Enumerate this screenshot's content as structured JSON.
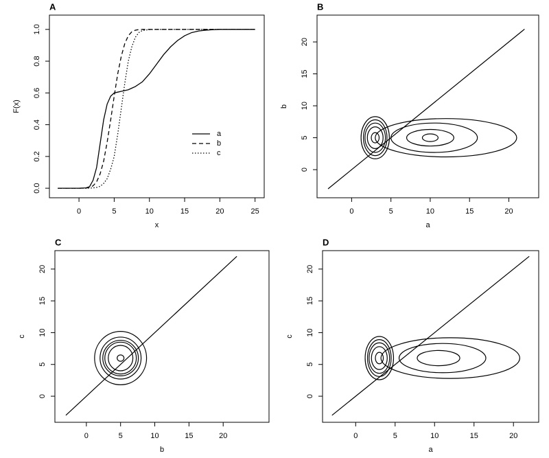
{
  "chart_data": [
    {
      "type": "line",
      "title": "A",
      "x_label": "x",
      "y_label": "F(x)",
      "x": [
        -3,
        -2,
        -1,
        0,
        1,
        1.5,
        2,
        2.5,
        3,
        3.5,
        4,
        4.5,
        5,
        5.5,
        6,
        6.5,
        7,
        7.5,
        8,
        8.5,
        9,
        10,
        11,
        12,
        13,
        14,
        15,
        16,
        17,
        18,
        19,
        20,
        21,
        22,
        23,
        24,
        25
      ],
      "series": [
        {
          "name": "a",
          "color": "#000000",
          "linestyle": "solid",
          "values": [
            0,
            0,
            0,
            0,
            0.002,
            0.01,
            0.05,
            0.13,
            0.28,
            0.43,
            0.53,
            0.58,
            0.6,
            0.605,
            0.61,
            0.615,
            0.62,
            0.63,
            0.64,
            0.655,
            0.67,
            0.72,
            0.78,
            0.84,
            0.89,
            0.93,
            0.96,
            0.98,
            0.99,
            0.995,
            0.998,
            1,
            1,
            1,
            1,
            1,
            1
          ]
        },
        {
          "name": "b",
          "color": "#000000",
          "linestyle": "dashed",
          "values": [
            0,
            0,
            0,
            0,
            0.001,
            0.005,
            0.015,
            0.04,
            0.09,
            0.17,
            0.29,
            0.43,
            0.58,
            0.72,
            0.83,
            0.91,
            0.96,
            0.985,
            0.995,
            0.999,
            1,
            1,
            1,
            1,
            1,
            1,
            1,
            1,
            1,
            1,
            1,
            1,
            1,
            1,
            1,
            1,
            1
          ]
        },
        {
          "name": "c",
          "color": "#000000",
          "linestyle": "dotted",
          "values": [
            0,
            0,
            0,
            0,
            0,
            0.001,
            0.002,
            0.005,
            0.012,
            0.03,
            0.06,
            0.12,
            0.2,
            0.34,
            0.5,
            0.66,
            0.8,
            0.89,
            0.95,
            0.98,
            0.993,
            0.999,
            1,
            1,
            1,
            1,
            1,
            1,
            1,
            1,
            1,
            1,
            1,
            1,
            1,
            1,
            1
          ]
        }
      ],
      "xlim": [
        -4.2,
        26.3
      ],
      "xticks": [
        0,
        5,
        10,
        15,
        20,
        25
      ],
      "ylim": [
        -0.06,
        1.09
      ],
      "yticks": [
        {
          "value": 0,
          "label": "0.0"
        },
        0.2,
        0.4,
        0.6,
        0.8,
        {
          "value": 1,
          "label": "1.0"
        }
      ],
      "legend": "center-right"
    },
    {
      "type": "contour",
      "title": "B",
      "x_label": "a",
      "y_label": "b",
      "reference": {
        "x": [
          -3,
          22
        ],
        "y": [
          -3,
          22
        ]
      },
      "contours": [
        {
          "cx": 3,
          "cy": 5,
          "rx": 0.5,
          "ry": 0.8
        },
        {
          "cx": 3,
          "cy": 5,
          "rx": 1,
          "ry": 1.7
        },
        {
          "cx": 3,
          "cy": 5,
          "rx": 1.3,
          "ry": 2.3
        },
        {
          "cx": 3,
          "cy": 5,
          "rx": 1.5,
          "ry": 2.8
        },
        {
          "cx": 3,
          "cy": 5,
          "rx": 1.8,
          "ry": 3.3
        },
        {
          "cx": 10,
          "cy": 5,
          "rx": 1,
          "ry": 0.6
        },
        {
          "cx": 10,
          "cy": 5,
          "rx": 3,
          "ry": 1.3
        },
        {
          "cx": 10.5,
          "cy": 5,
          "rx": 5.5,
          "ry": 2.3
        },
        {
          "cx": 12,
          "cy": 5,
          "rx": 9,
          "ry": 3
        }
      ],
      "xlim": [
        -4.4,
        23.8
      ],
      "xticks": [
        0,
        5,
        10,
        15,
        20
      ],
      "ylim": [
        -4.4,
        24.2
      ],
      "yticks": [
        0,
        5,
        10,
        15,
        20
      ]
    },
    {
      "type": "contour",
      "title": "C",
      "x_label": "b",
      "y_label": "c",
      "reference": {
        "x": [
          -3,
          22
        ],
        "y": [
          -3,
          22
        ]
      },
      "contours": [
        {
          "cx": 5,
          "cy": 6,
          "rx": 0.5,
          "ry": 0.5
        },
        {
          "cx": 5,
          "cy": 6,
          "rx": 1.8,
          "ry": 2
        },
        {
          "cx": 5,
          "cy": 6,
          "rx": 2.3,
          "ry": 2.5
        },
        {
          "cx": 5,
          "cy": 6,
          "rx": 2.6,
          "ry": 2.8
        },
        {
          "cx": 5,
          "cy": 6,
          "rx": 3,
          "ry": 3.3
        },
        {
          "cx": 5,
          "cy": 6,
          "rx": 3.8,
          "ry": 4.2
        }
      ],
      "xlim": [
        -4.6,
        26.7
      ],
      "xticks": [
        0,
        5,
        10,
        15,
        20
      ],
      "ylim": [
        -4.1,
        22.9
      ],
      "yticks": [
        0,
        5,
        10,
        15,
        20
      ]
    },
    {
      "type": "contour",
      "title": "D",
      "x_label": "a",
      "y_label": "c",
      "reference": {
        "x": [
          -3,
          22
        ],
        "y": [
          -3,
          22
        ]
      },
      "contours": [
        {
          "cx": 3,
          "cy": 6,
          "rx": 0.5,
          "ry": 0.9
        },
        {
          "cx": 3,
          "cy": 6,
          "rx": 1,
          "ry": 1.8
        },
        {
          "cx": 3,
          "cy": 6,
          "rx": 1.3,
          "ry": 2.4
        },
        {
          "cx": 3,
          "cy": 6,
          "rx": 1.5,
          "ry": 2.9
        },
        {
          "cx": 3,
          "cy": 6,
          "rx": 1.8,
          "ry": 3.4
        },
        {
          "cx": 10.5,
          "cy": 6,
          "rx": 2.7,
          "ry": 1.2
        },
        {
          "cx": 11,
          "cy": 6,
          "rx": 5.5,
          "ry": 2.3
        },
        {
          "cx": 12,
          "cy": 6,
          "rx": 8.8,
          "ry": 3.2
        }
      ],
      "xlim": [
        -4.2,
        23.2
      ],
      "xticks": [
        0,
        5,
        10,
        15,
        20
      ],
      "ylim": [
        -4.1,
        22.9
      ],
      "yticks": [
        0,
        5,
        10,
        15,
        20
      ]
    }
  ]
}
